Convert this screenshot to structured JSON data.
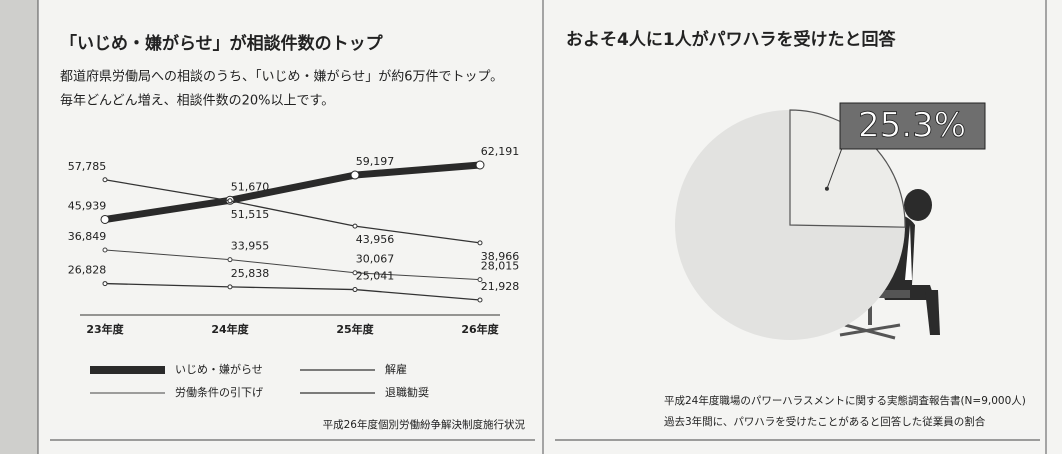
{
  "chart_data": [
    {
      "type": "line",
      "title": "「いじめ・嫌がらせ」が相談件数のトップ",
      "subtitle": [
        "都道府県労働局への相談のうち、「いじめ・嫌がらせ」が約6万件でトップ。",
        "毎年どんどん増え、相談件数の20%以上です。"
      ],
      "categories": [
        "23年度",
        "24年度",
        "25年度",
        "26年度"
      ],
      "series": [
        {
          "name": "いじめ・嫌がらせ",
          "color": "#2a2a2a",
          "width": 7,
          "values": [
            45939,
            51670,
            59197,
            62191
          ],
          "value_labels": [
            "45,939",
            "51,670",
            "59,197",
            "62,191"
          ]
        },
        {
          "name": "解雇",
          "color": "#333333",
          "width": 1.3,
          "values": [
            57785,
            51515,
            43956,
            38966
          ],
          "value_labels": [
            "57,785",
            "51,515",
            "43,956",
            "38,966"
          ]
        },
        {
          "name": "労働条件の引下げ",
          "color": "#444444",
          "width": 1,
          "values": [
            36849,
            33955,
            30067,
            28015
          ],
          "value_labels": [
            "36,849",
            "33,955",
            "30,067",
            "28,015"
          ]
        },
        {
          "name": "退職勧奨",
          "color": "#333333",
          "width": 1.3,
          "values": [
            26828,
            25838,
            25041,
            21928
          ],
          "value_labels": [
            "26,828",
            "25,838",
            "25,041",
            "21,928"
          ]
        }
      ],
      "source": "平成26年度個別労働紛争解決制度施行状況"
    },
    {
      "type": "pie",
      "title": "およそ4人に1人がパワハラを受けたと回答",
      "values": [
        25.3
      ],
      "value_labels": [
        "25.3%"
      ],
      "color": "#6e6e6e",
      "notes": [
        "平成24年度職場のパワーハラスメントに関する実態調査報告書(N=9,000人)",
        "過去3年間に、パワハラを受けたことがあると回答した従業員の割合"
      ]
    }
  ]
}
